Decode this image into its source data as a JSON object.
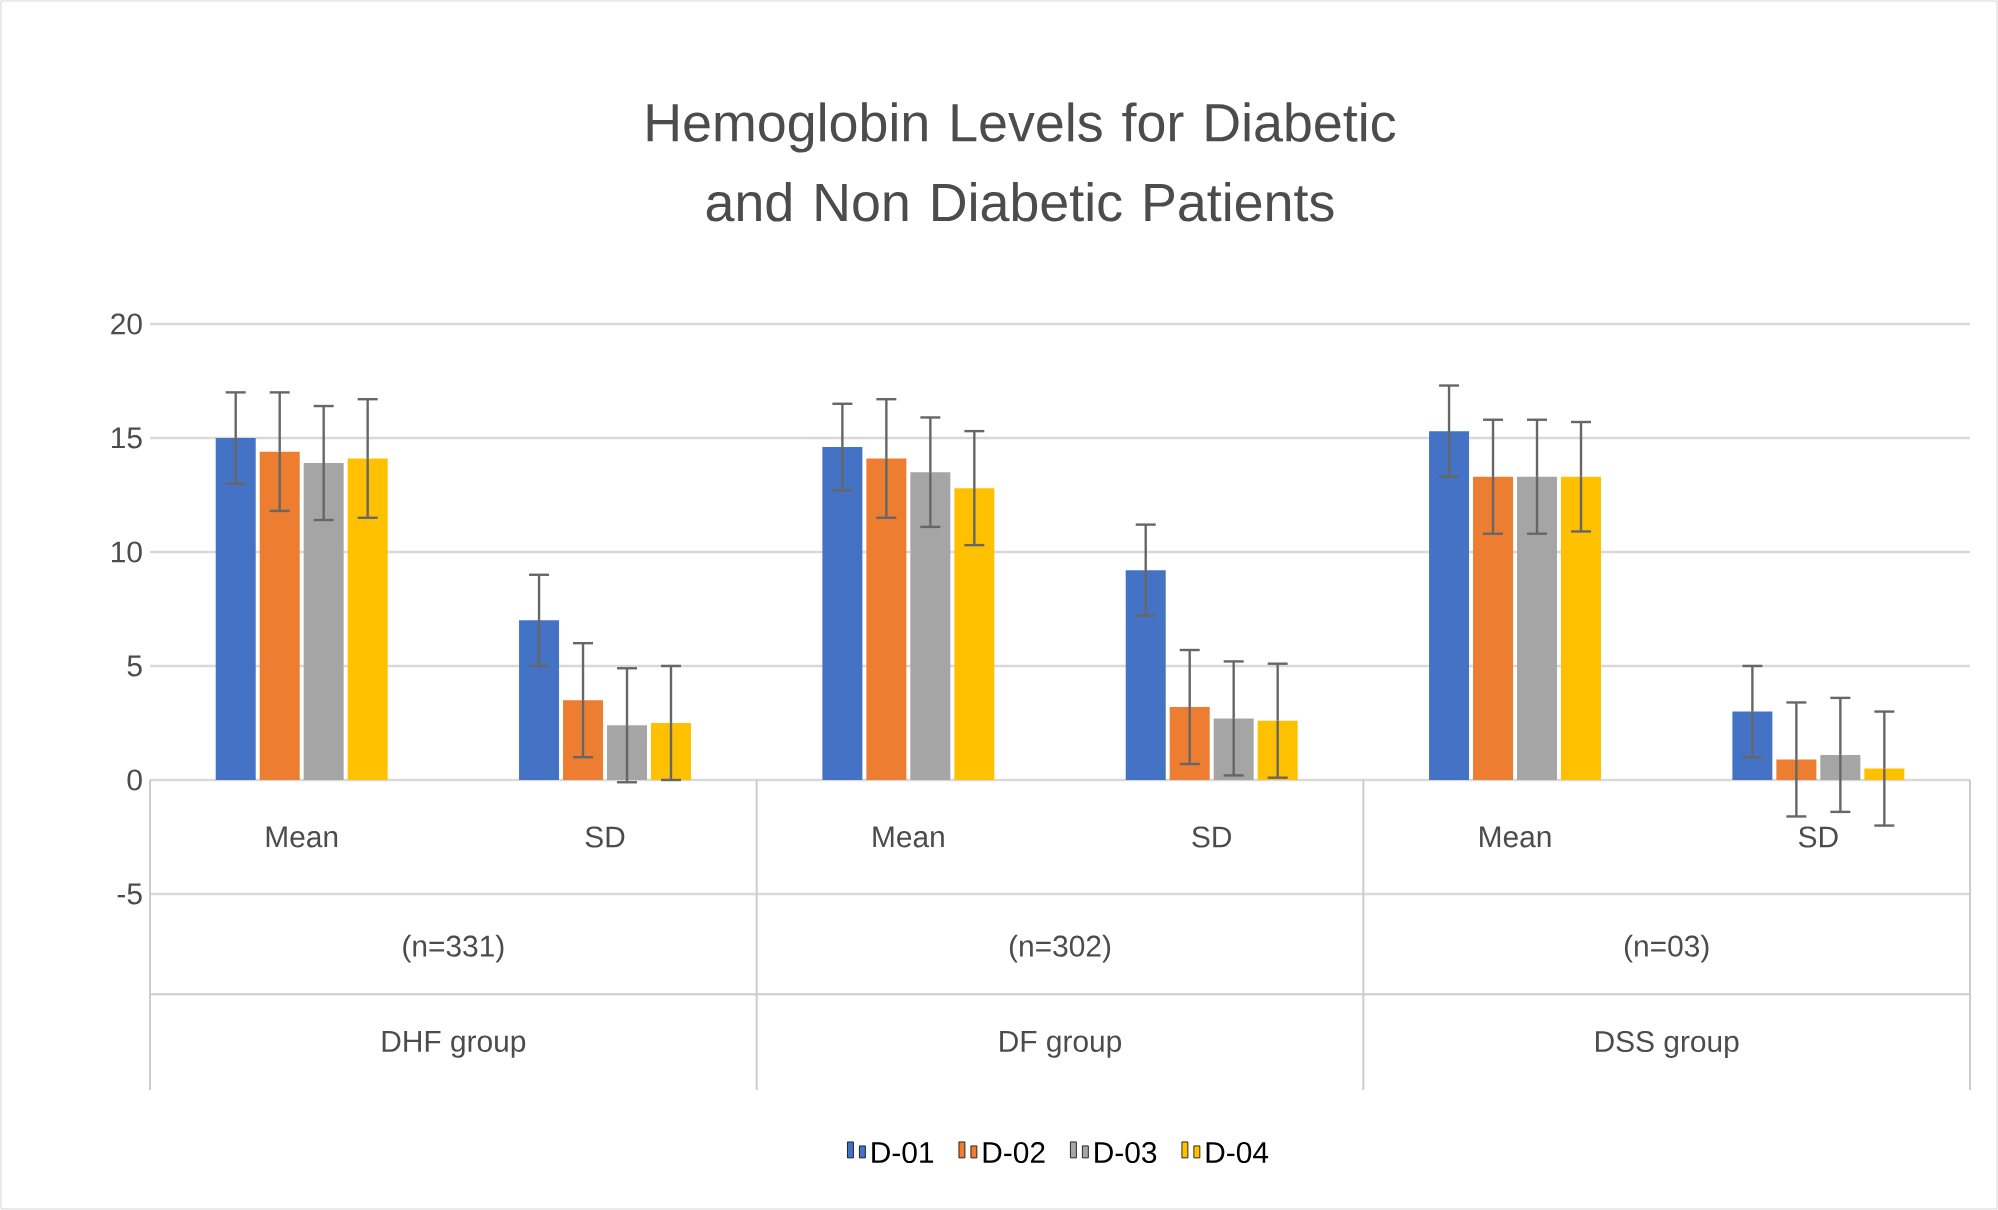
{
  "chart_data": {
    "type": "bar",
    "title": "Hemoglobin Levels for Diabetic and Non Diabetic Patients",
    "categories": [
      "Mean",
      "SD",
      "Mean",
      "SD",
      "Mean",
      "SD"
    ],
    "annotations": [
      "(n=331)",
      "DHF group",
      "(n=302)",
      "DF group",
      "(n=03)",
      "DSS group"
    ],
    "series": [
      {
        "name": "D-01",
        "color": "#4472c4",
        "values": [
          15.0,
          7.0,
          14.6,
          9.2,
          15.3,
          3.0
        ],
        "errors": [
          2.0,
          2.0,
          1.9,
          2.0,
          2.0,
          2.0
        ]
      },
      {
        "name": "D-02",
        "color": "#ed7d31",
        "values": [
          14.4,
          3.5,
          14.1,
          3.2,
          13.3,
          0.9
        ],
        "errors": [
          2.6,
          2.5,
          2.6,
          2.5,
          2.5,
          2.5
        ]
      },
      {
        "name": "D-03",
        "color": "#a5a5a5",
        "values": [
          13.9,
          2.4,
          13.5,
          2.7,
          13.3,
          1.1
        ],
        "errors": [
          2.5,
          2.5,
          2.4,
          2.5,
          2.5,
          2.5
        ]
      },
      {
        "name": "D-04",
        "color": "#ffc000",
        "values": [
          14.1,
          2.5,
          12.8,
          2.6,
          13.3,
          0.5
        ],
        "errors": [
          2.6,
          2.5,
          2.5,
          2.5,
          2.4,
          2.5
        ]
      }
    ],
    "ylim": [
      -5,
      20
    ],
    "yticks": [
      -5,
      0,
      5,
      10,
      15,
      20
    ],
    "grid": true,
    "legend": "bottom"
  }
}
